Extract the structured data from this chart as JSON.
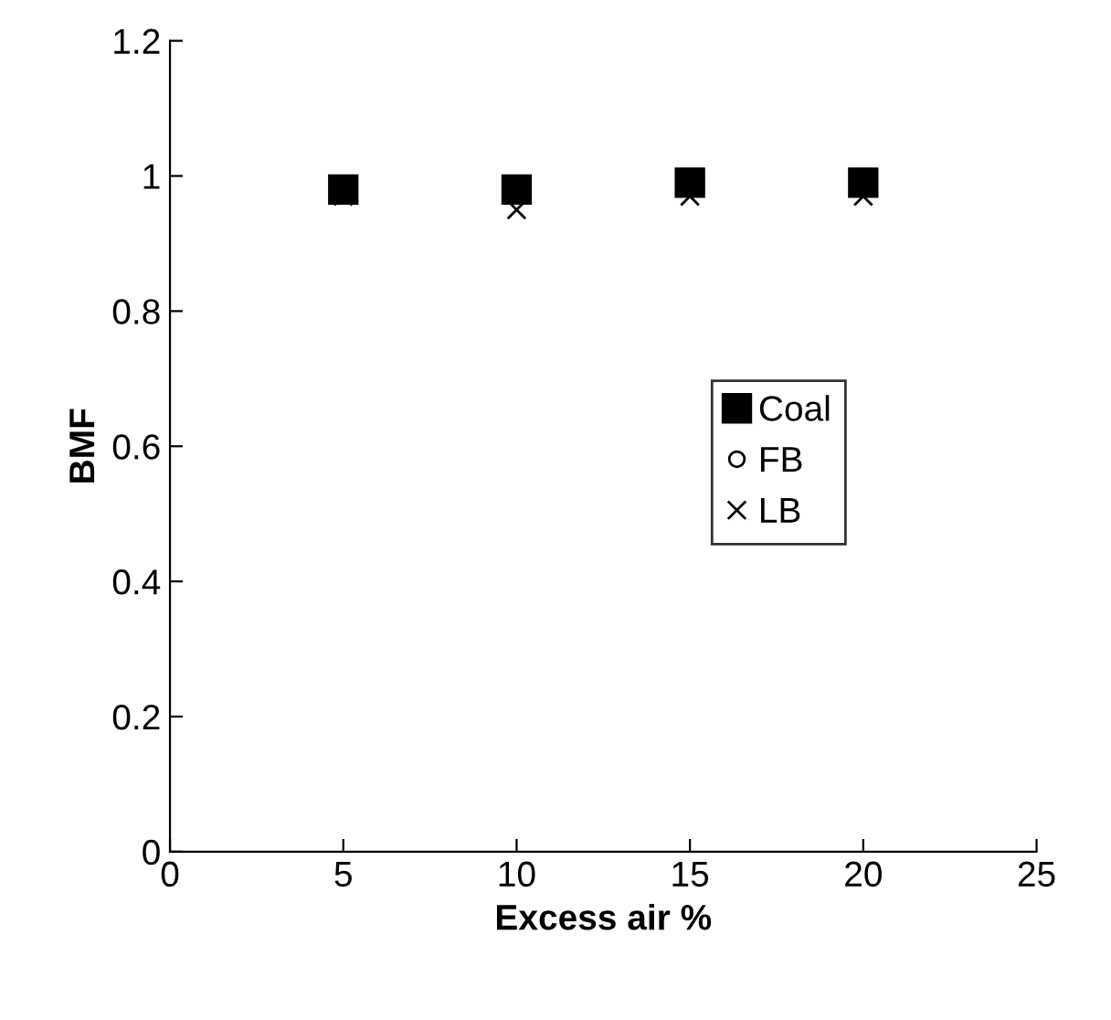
{
  "chart_data": {
    "type": "scatter",
    "xlabel": "Excess air %",
    "ylabel": "BMF",
    "x": [
      5,
      10,
      15,
      20
    ],
    "series": [
      {
        "name": "Coal",
        "color": "#000000",
        "marker": "square",
        "values": [
          0.98,
          0.98,
          0.99,
          0.99
        ]
      },
      {
        "name": "FB",
        "color": "#000000",
        "marker": "circle",
        "values": [
          null,
          null,
          null,
          null
        ]
      },
      {
        "name": "LB",
        "color": "#000000",
        "marker": "cross",
        "values": [
          0.97,
          0.95,
          0.97,
          0.97
        ]
      }
    ],
    "xlim": [
      0,
      25
    ],
    "xticks": [
      0,
      5,
      10,
      15,
      20,
      25
    ],
    "ylim": [
      0,
      1.2
    ],
    "yticks": [
      0,
      0.2,
      0.4,
      0.6,
      0.8,
      1,
      1.2
    ],
    "grid": false,
    "legend": "center right"
  }
}
